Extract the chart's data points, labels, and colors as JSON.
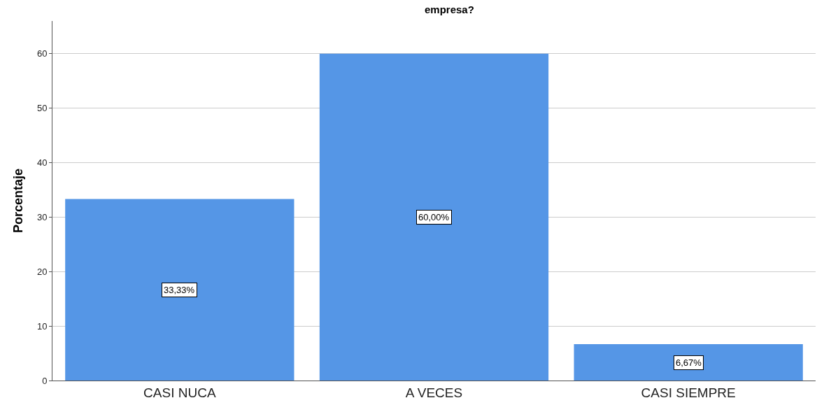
{
  "chart_data": {
    "type": "bar",
    "title": "empresa?",
    "ylabel": "Porcentaje",
    "categories": [
      "CASI NUCA",
      "A VECES",
      "CASI SIEMPRE"
    ],
    "values": [
      33.33,
      60.0,
      6.67
    ],
    "value_labels": [
      "33,33%",
      "60,00%",
      "6,67%"
    ],
    "color": "#5596e6",
    "ylim": [
      0,
      66
    ],
    "yticks": [
      0,
      10,
      20,
      30,
      40,
      50,
      60
    ],
    "grid": "y",
    "legend": false
  }
}
